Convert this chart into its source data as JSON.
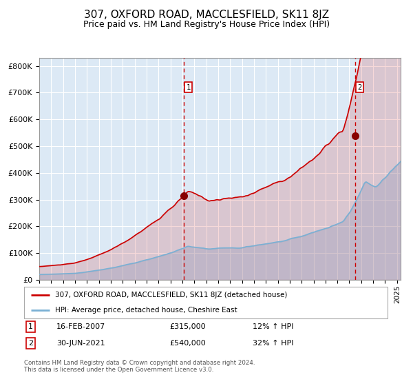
{
  "title": "307, OXFORD ROAD, MACCLESFIELD, SK11 8JZ",
  "subtitle": "Price paid vs. HM Land Registry's House Price Index (HPI)",
  "title_fontsize": 11,
  "subtitle_fontsize": 9,
  "plot_bg_color": "#dce9f5",
  "grid_color": "#ffffff",
  "red_line_color": "#cc0000",
  "blue_line_color": "#7ab0d4",
  "marker_color": "#880000",
  "vline_color": "#cc0000",
  "ylim": [
    0,
    830000
  ],
  "yticks": [
    0,
    100000,
    200000,
    300000,
    400000,
    500000,
    600000,
    700000,
    800000
  ],
  "ytick_labels": [
    "£0",
    "£100K",
    "£200K",
    "£300K",
    "£400K",
    "£500K",
    "£600K",
    "£700K",
    "£800K"
  ],
  "event1_year": 2007.12,
  "event1_price": 315000,
  "event1_label": "1",
  "event2_year": 2021.49,
  "event2_price": 540000,
  "event2_label": "2",
  "legend_label_red": "307, OXFORD ROAD, MACCLESFIELD, SK11 8JZ (detached house)",
  "legend_label_blue": "HPI: Average price, detached house, Cheshire East",
  "footer": "Contains HM Land Registry data © Crown copyright and database right 2024.\nThis data is licensed under the Open Government Licence v3.0.",
  "table_row1": [
    "1",
    "16-FEB-2007",
    "£315,000",
    "12% ↑ HPI"
  ],
  "table_row2": [
    "2",
    "30-JUN-2021",
    "£540,000",
    "32% ↑ HPI"
  ]
}
